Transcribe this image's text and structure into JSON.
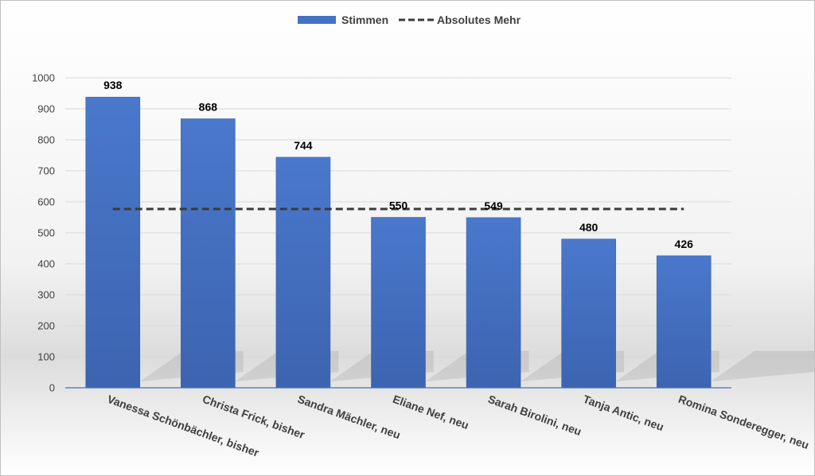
{
  "chart_data": {
    "type": "bar",
    "categories": [
      "Vanessa Schönbächler, bisher",
      "Christa Frick, bisher",
      "Sandra Mächler, neu",
      "Eliane Nef, neu",
      "Sarah Birolini, neu",
      "Tanja Antic, neu",
      "Romina Sonderegger, neu"
    ],
    "series": [
      {
        "name": "Stimmen",
        "values": [
          938,
          868,
          744,
          550,
          549,
          480,
          426
        ],
        "color": "#4472c4"
      }
    ],
    "reference_lines": [
      {
        "name": "Absolutes Mehr",
        "value": 577,
        "style": "dashed",
        "color": "#3a3a3a"
      }
    ],
    "ylim": [
      0,
      1000
    ],
    "yticks": [
      0,
      100,
      200,
      300,
      400,
      500,
      600,
      700,
      800,
      900,
      1000
    ],
    "grid": true,
    "legend_position": "top-center",
    "data_labels": true,
    "title": "",
    "xlabel": "",
    "ylabel": ""
  }
}
